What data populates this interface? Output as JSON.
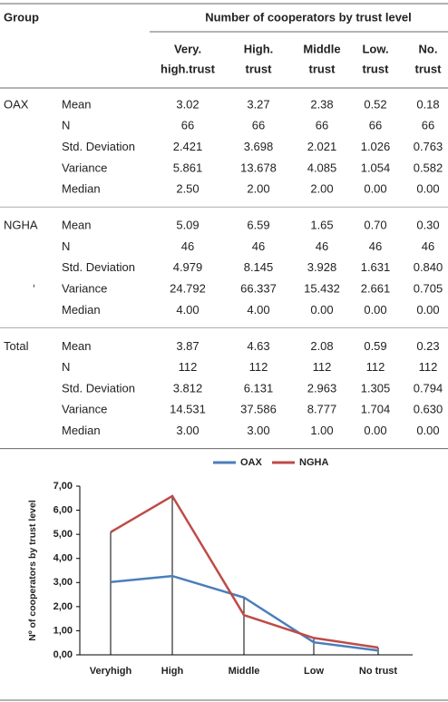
{
  "table": {
    "group_header": "Group",
    "span_header": "Number of cooperators by trust level",
    "columns": [
      [
        "Very.",
        "high.trust"
      ],
      [
        "High.",
        "trust"
      ],
      [
        "Middle",
        "trust"
      ],
      [
        "Low.",
        "trust"
      ],
      [
        "No.",
        "trust"
      ]
    ],
    "groups": [
      {
        "label": "OAX",
        "rows": [
          {
            "stat": "Mean",
            "values": [
              "3.02",
              "3.27",
              "2.38",
              "0.52",
              "0.18"
            ]
          },
          {
            "stat": "N",
            "values": [
              "66",
              "66",
              "66",
              "66",
              "66"
            ]
          },
          {
            "stat": "Std. Deviation",
            "values": [
              "2.421",
              "3.698",
              "2.021",
              "1.026",
              "0.763"
            ]
          },
          {
            "stat": "Variance",
            "values": [
              "5.861",
              "13.678",
              "4.085",
              "1.054",
              "0.582"
            ]
          },
          {
            "stat": "Median",
            "values": [
              "2.50",
              "2.00",
              "2.00",
              "0.00",
              "0.00"
            ]
          }
        ]
      },
      {
        "label": "NGHA",
        "note": "‘",
        "rows": [
          {
            "stat": "Mean",
            "values": [
              "5.09",
              "6.59",
              "1.65",
              "0.70",
              "0.30"
            ]
          },
          {
            "stat": "N",
            "values": [
              "46",
              "46",
              "46",
              "46",
              "46"
            ]
          },
          {
            "stat": "Std. Deviation",
            "values": [
              "4.979",
              "8.145",
              "3.928",
              "1.631",
              "0.840"
            ]
          },
          {
            "stat": "Variance",
            "values": [
              "24.792",
              "66.337",
              "15.432",
              "2.661",
              "0.705"
            ]
          },
          {
            "stat": "Median",
            "values": [
              "4.00",
              "4.00",
              "0.00",
              "0.00",
              "0.00"
            ]
          }
        ]
      },
      {
        "label": "Total",
        "rows": [
          {
            "stat": "Mean",
            "values": [
              "3.87",
              "4.63",
              "2.08",
              "0.59",
              "0.23"
            ]
          },
          {
            "stat": "N",
            "values": [
              "112",
              "112",
              "112",
              "112",
              "112"
            ]
          },
          {
            "stat": "Std. Deviation",
            "values": [
              "3.812",
              "6.131",
              "2.963",
              "1.305",
              "0.794"
            ]
          },
          {
            "stat": "Variance",
            "values": [
              "14.531",
              "37.586",
              "8.777",
              "1.704",
              "0.630"
            ]
          },
          {
            "stat": "Median",
            "values": [
              "3.00",
              "3.00",
              "1.00",
              "0.00",
              "0.00"
            ]
          }
        ]
      }
    ]
  },
  "chart_data": {
    "type": "line",
    "y_label": "Nº of cooperators by trust level",
    "categories": [
      "Veryhigh",
      "High",
      "Middle",
      "Low",
      "No trust"
    ],
    "series": [
      {
        "name": "OAX",
        "color": "#4a7ebb",
        "values": [
          3.02,
          3.27,
          2.38,
          0.52,
          0.18
        ]
      },
      {
        "name": "NGHA",
        "color": "#be4b48",
        "values": [
          5.09,
          6.59,
          1.65,
          0.7,
          0.3
        ]
      }
    ],
    "ylim": [
      0,
      7
    ],
    "yticks": [
      {
        "value": 0,
        "label": "0,00"
      },
      {
        "value": 1,
        "label": "1,00"
      },
      {
        "value": 2,
        "label": "2,00"
      },
      {
        "value": 3,
        "label": "3,00"
      },
      {
        "value": 4,
        "label": "4,00"
      },
      {
        "value": 5,
        "label": "5,00"
      },
      {
        "value": 6,
        "label": "6,00"
      },
      {
        "value": 7,
        "label": "7,00"
      }
    ],
    "drop_lines": true,
    "legend": "top"
  }
}
